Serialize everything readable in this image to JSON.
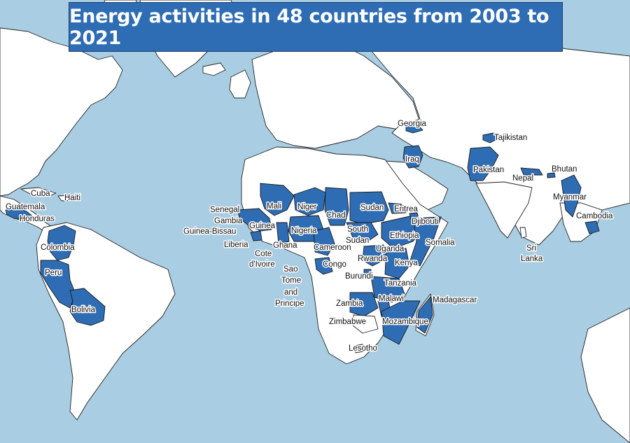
{
  "title": "Energy activities in 48 countries from 2003 to 2021",
  "colors": {
    "ocean": "#a9cde2",
    "land": "#ffffff",
    "highlight": "#2e6cb3",
    "border": "#222222"
  },
  "labels": {
    "georgia": "Georgia",
    "tajikistan": "Tajikistan",
    "iraq": "Iraq",
    "pakistan": "Pakistan",
    "bhutan": "Bhutan",
    "nepal": "Nepal",
    "myanmar": "Myanmar",
    "cambodia": "Cambodia",
    "sri": "Sri",
    "lanka": "Lanka",
    "cuba": "Cuba",
    "haiti": "Haiti",
    "guatemala": "Guatemala",
    "honduras": "Honduras",
    "colombia": "Colombia",
    "peru": "Peru",
    "bolivia": "Bolivia",
    "senegal": "Senegal",
    "gambia": "Gambia",
    "guinea_bissau": "Guinea-Bissau",
    "liberia": "Liberia",
    "guinea": "Guinea",
    "mali": "Mali",
    "niger": "Niger",
    "chad": "Chad",
    "sudan": "Sudan",
    "eritrea": "Eritrea",
    "djibouti": "Djibouti",
    "south": "South",
    "sudan2": "Sudan",
    "ethiopia": "Ethiopia",
    "somalia": "Somalia",
    "nigeria": "Nigeria",
    "ghana": "Ghana",
    "cote": "Cote",
    "divoire": "d'Ivoire",
    "cameroon": "Cameroon",
    "uganda": "Uganda",
    "congo": "Congo",
    "rwanda": "Rwanda",
    "kenya": "Kenya",
    "burundi": "Burundi",
    "sao": "Sao",
    "tome": "Tome",
    "and": "and",
    "principe": "Principe",
    "tanzania": "Tanzania",
    "madagascar": "Madagascar",
    "malawi": "Malawi",
    "zambia": "Zambia",
    "zimbabwe": "Zimbabwe",
    "mozambique": "Mozambique",
    "lesotho": "Lesotho"
  }
}
